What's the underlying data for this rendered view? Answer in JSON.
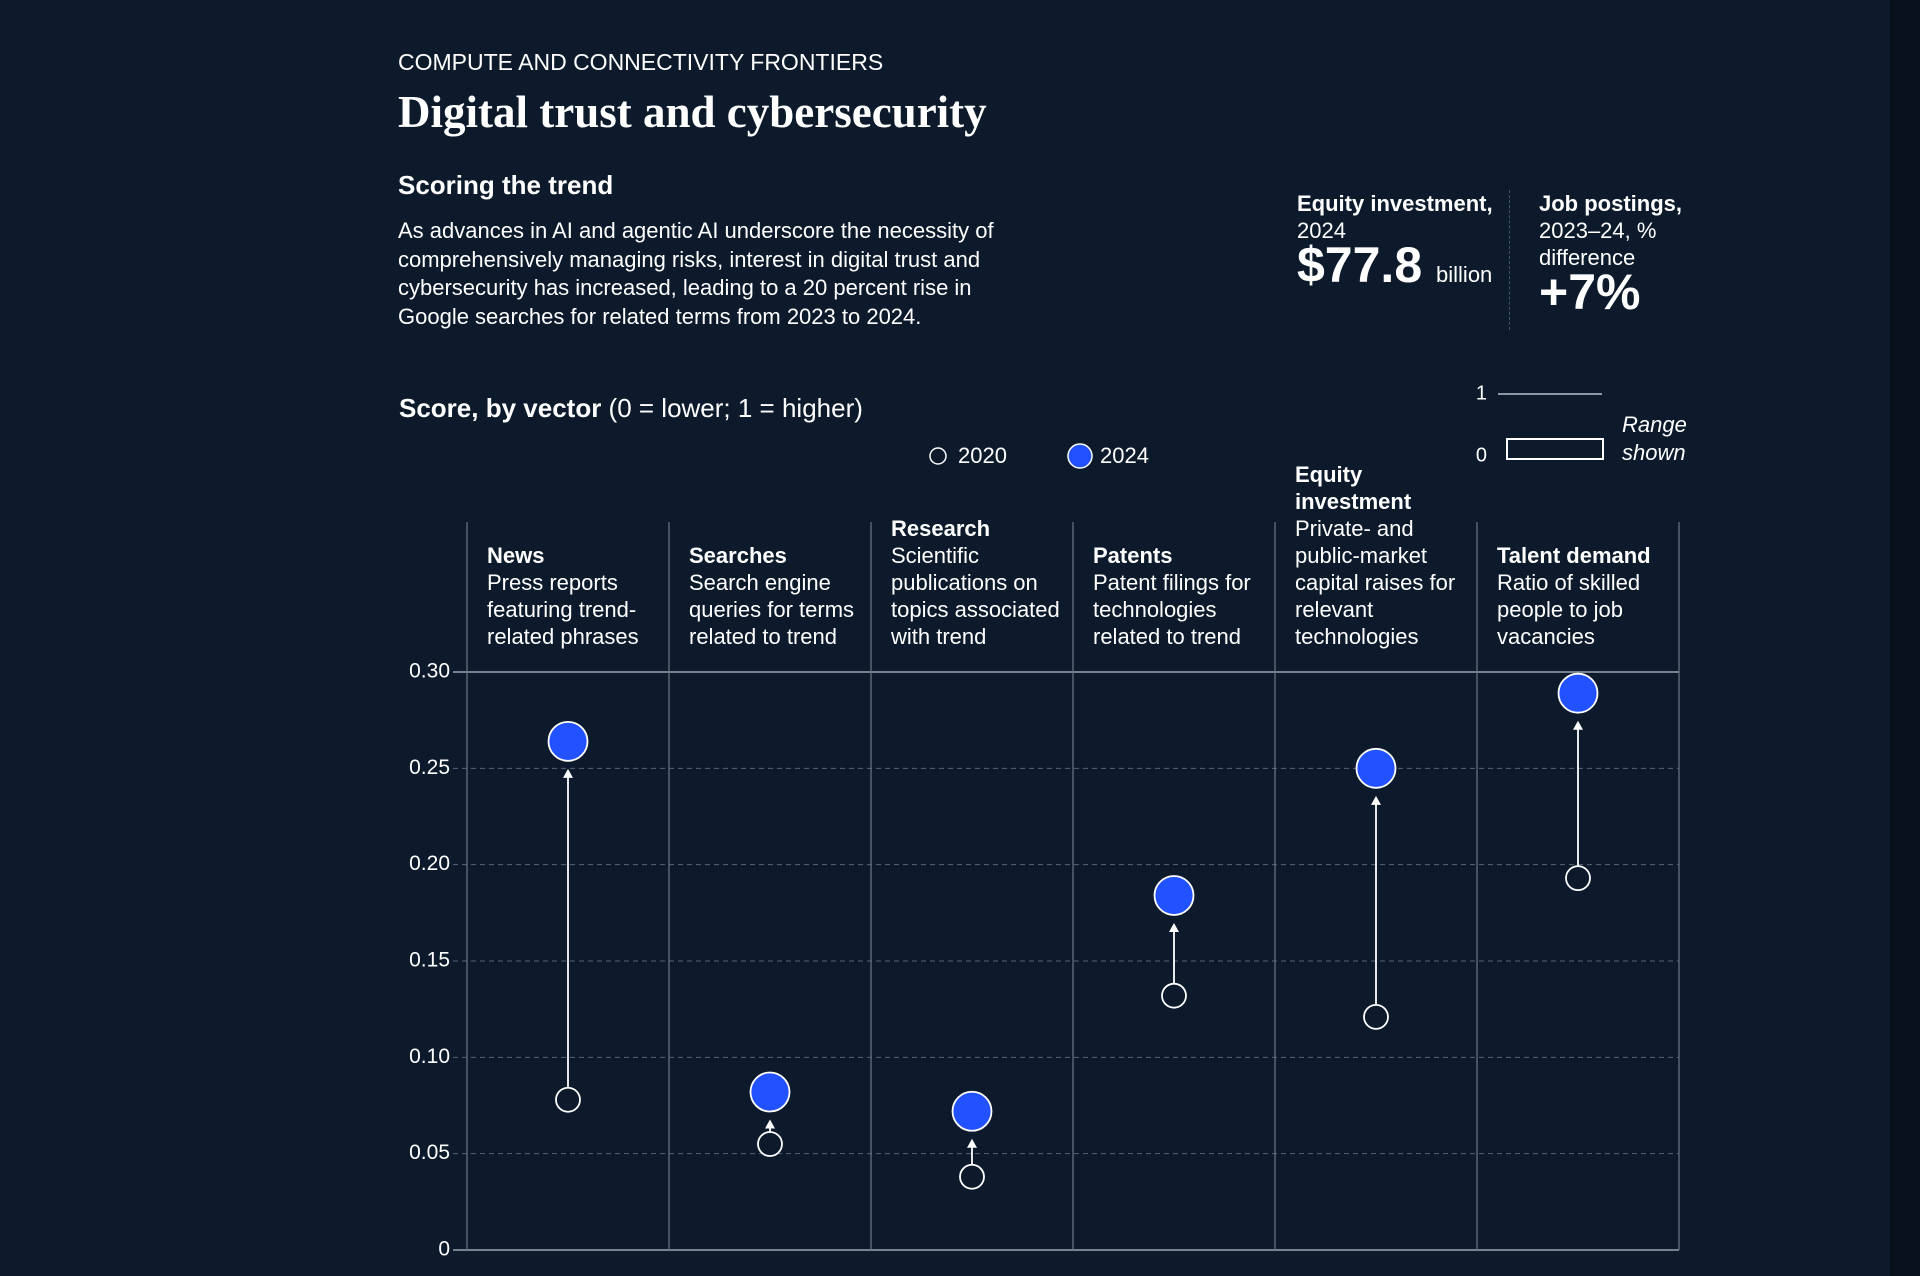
{
  "chart_data": {
    "type": "dumbbell",
    "kicker": "COMPUTE AND CONNECTIVITY FRONTIERS",
    "title": "Digital trust and cybersecurity",
    "subtitle": "Scoring the trend",
    "description": "As advances in AI and agentic AI underscore the necessity of comprehensively managing risks, interest in digital trust and cybersecurity has increased, leading to a 20 percent rise in Google searches for related terms from 2023 to 2024.",
    "stats": [
      {
        "label": "Equity investment,",
        "sublabel": "2024",
        "value": "$77.8",
        "unit": "billion"
      },
      {
        "label": "Job postings,",
        "sublabel": "2023–24, % difference",
        "value": "+7%"
      }
    ],
    "axis_title": "Score, by vector",
    "axis_note": "(0 = lower; 1 = higher)",
    "range_legend": {
      "max": "1",
      "min": "0",
      "label": "Range shown"
    },
    "categories": [
      "News",
      "Searches",
      "Research",
      "Patents",
      "Equity investment",
      "Talent demand"
    ],
    "descriptions": [
      "Press reports featuring trend-related phrases",
      "Search engine queries for terms related to trend",
      "Scientific publications on topics associated with trend",
      "Patent filings for technologies related to trend",
      "Private- and public-market capital raises for relevant technologies",
      "Ratio of skilled people to job vacancies"
    ],
    "series": [
      {
        "name": "2020",
        "color": "#0c1a2b",
        "values": [
          0.078,
          0.055,
          0.038,
          0.132,
          0.121,
          0.193
        ]
      },
      {
        "name": "2024",
        "color": "#2251ff",
        "values": [
          0.264,
          0.082,
          0.072,
          0.184,
          0.25,
          0.289
        ]
      }
    ],
    "ylim": [
      0,
      0.3
    ],
    "yticks": [
      0,
      0.05,
      {
        "value": 0.1,
        "label": "0.10"
      },
      0.15,
      {
        "value": 0.2,
        "label": "0.20"
      },
      0.25,
      {
        "value": 0.3,
        "label": "0.30"
      }
    ],
    "grid": true
  }
}
